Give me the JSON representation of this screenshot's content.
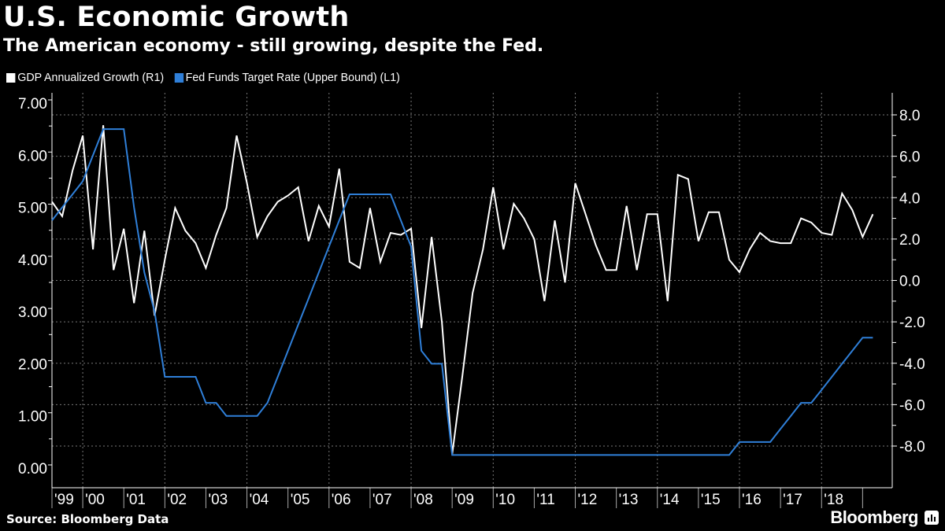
{
  "header": {
    "title": "U.S. Economic Growth",
    "subtitle": "The American economy - still growing, despite the Fed."
  },
  "footer": {
    "source": "Source: Bloomberg Data",
    "logo_text": "Bloomberg"
  },
  "chart_data": {
    "type": "line",
    "title": "U.S. Economic Growth",
    "subtitle": "The American economy - still growing, despite the Fed.",
    "x_start": "1999 Q1",
    "x_end": "2019 Q1",
    "x_frequency": "quarterly",
    "x_tick_labels": [
      "'99",
      "'00",
      "'01",
      "'02",
      "'03",
      "'04",
      "'05",
      "'06",
      "'07",
      "'08",
      "'09",
      "'10",
      "'11",
      "'12",
      "'13",
      "'14",
      "'15",
      "'16",
      "'17",
      "'18"
    ],
    "left_axis": {
      "ylim": [
        0,
        7
      ],
      "tick_labels": [
        "7.00",
        "6.00",
        "5.00",
        "4.00",
        "3.00",
        "2.00",
        "1.00",
        "0.00"
      ]
    },
    "right_axis": {
      "ylim": [
        -8,
        8
      ],
      "tick_labels": [
        "8.0",
        "6.0",
        "4.0",
        "2.0",
        "0.0",
        "-2.0",
        "-4.0",
        "-6.0",
        "-8.0"
      ]
    },
    "grid": true,
    "legend_position": "top-left",
    "series": [
      {
        "name": "GDP Annualized Growth (R1)",
        "axis": "right",
        "color": "#ffffff",
        "values": [
          3.8,
          3.1,
          5.3,
          7.0,
          1.5,
          7.5,
          0.5,
          2.5,
          -1.1,
          2.4,
          -1.7,
          1.0,
          3.5,
          2.4,
          1.8,
          0.6,
          2.2,
          3.5,
          7.0,
          4.7,
          2.1,
          3.1,
          3.8,
          4.1,
          4.5,
          1.9,
          3.6,
          2.6,
          5.4,
          0.9,
          0.6,
          3.5,
          0.9,
          2.3,
          2.2,
          2.5,
          -2.3,
          2.1,
          -2.0,
          -8.4,
          -4.6,
          -0.6,
          1.5,
          4.5,
          1.5,
          3.7,
          3.0,
          2.0,
          -1.0,
          2.9,
          -0.1,
          4.7,
          3.2,
          1.7,
          0.5,
          0.5,
          3.6,
          0.5,
          3.2,
          3.2,
          -1.0,
          5.1,
          4.9,
          1.9,
          3.3,
          3.3,
          1.0,
          0.4,
          1.5,
          2.3,
          1.9,
          1.8,
          1.8,
          3.0,
          2.8,
          2.3,
          2.2,
          4.2,
          3.4,
          2.1,
          3.2
        ]
      },
      {
        "name": "Fed Funds Target Rate (Upper Bound) (L1)",
        "axis": "left",
        "color": "#2f7fd8",
        "values": [
          4.75,
          5.0,
          5.25,
          5.5,
          6.0,
          6.5,
          6.5,
          6.5,
          5.0,
          3.75,
          3.0,
          1.75,
          1.75,
          1.75,
          1.75,
          1.25,
          1.25,
          1.0,
          1.0,
          1.0,
          1.0,
          1.25,
          1.75,
          2.25,
          2.75,
          3.25,
          3.75,
          4.25,
          4.75,
          5.25,
          5.25,
          5.25,
          5.25,
          5.25,
          4.75,
          4.25,
          2.25,
          2.0,
          2.0,
          0.25,
          0.25,
          0.25,
          0.25,
          0.25,
          0.25,
          0.25,
          0.25,
          0.25,
          0.25,
          0.25,
          0.25,
          0.25,
          0.25,
          0.25,
          0.25,
          0.25,
          0.25,
          0.25,
          0.25,
          0.25,
          0.25,
          0.25,
          0.25,
          0.25,
          0.25,
          0.25,
          0.25,
          0.5,
          0.5,
          0.5,
          0.5,
          0.75,
          1.0,
          1.25,
          1.25,
          1.5,
          1.75,
          2.0,
          2.25,
          2.5,
          2.5
        ]
      }
    ]
  }
}
